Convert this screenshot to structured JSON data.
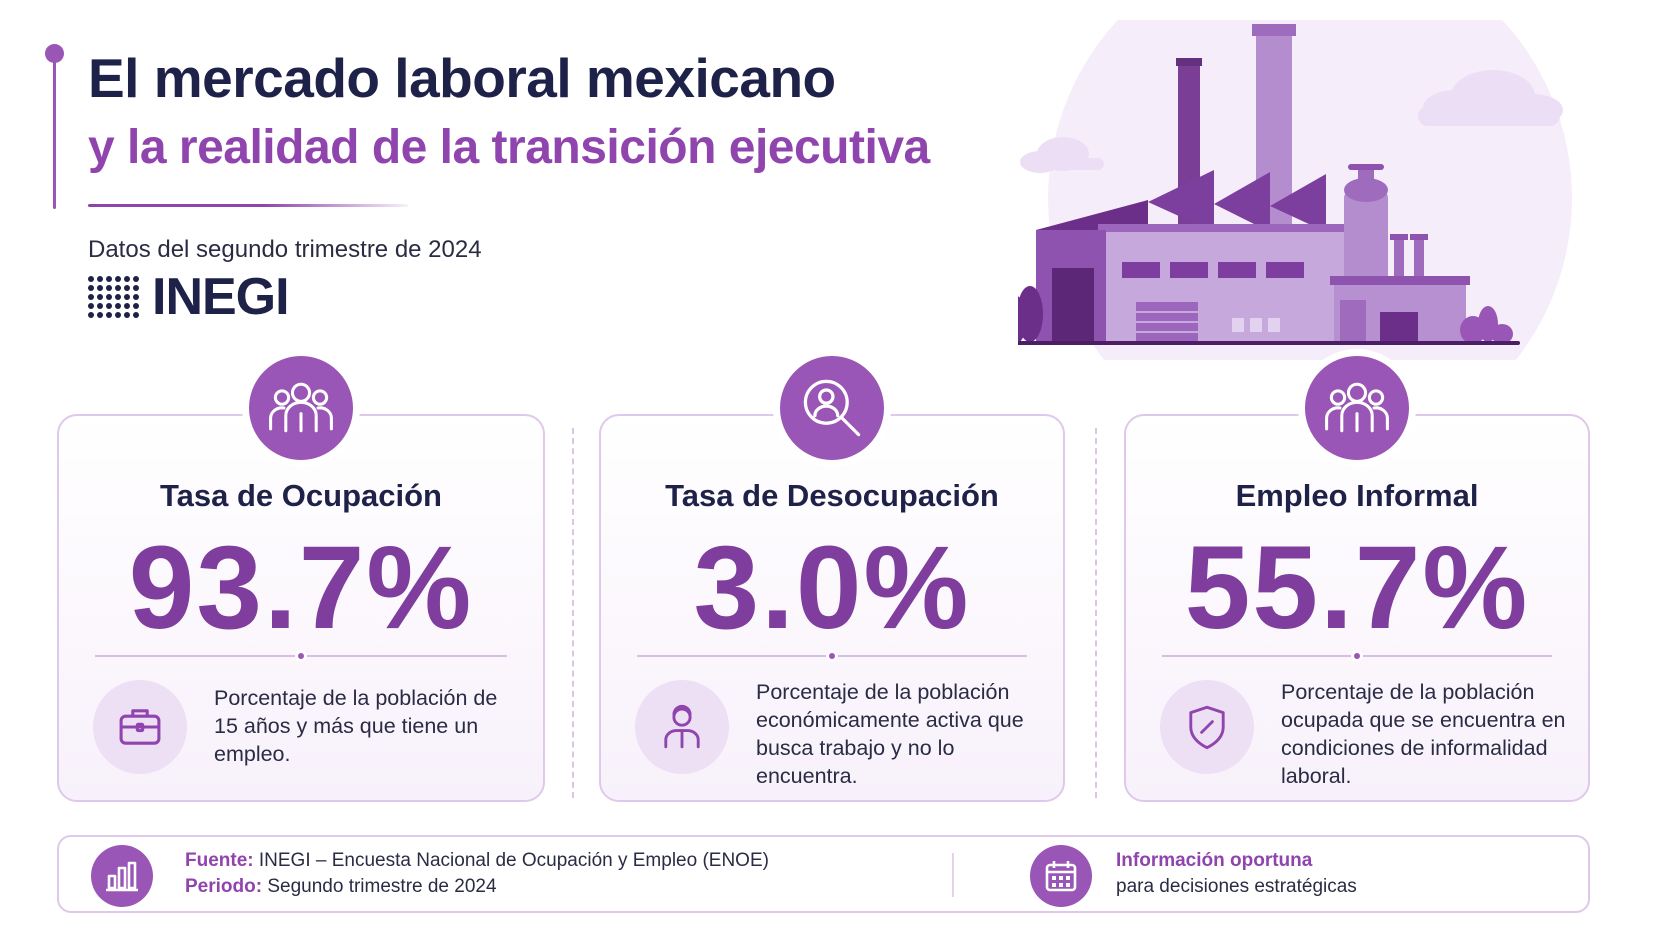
{
  "header": {
    "title_line1": "El mercado laboral mexicano",
    "title_line2": "y la realidad de la transición ejecutiva",
    "subtitle": "Datos del segundo trimestre de 2024",
    "logo_text": "INEGI"
  },
  "colors": {
    "accent": "#9a56b6",
    "value": "#7f3d9d",
    "title_dark": "#1e2148",
    "title_purple": "#8f45ad"
  },
  "cards": [
    {
      "title": "Tasa de Ocupación",
      "value": "93.7%",
      "description": "Porcentaje de la población de 15 años y más que tiene un empleo.",
      "badge_icon": "people-group-icon",
      "icon": "briefcase-icon"
    },
    {
      "title": "Tasa de Desocupación",
      "value": "3.0%",
      "description": "Porcentaje de la población económicamente activa que busca trabajo y no lo encuentra.",
      "badge_icon": "magnifier-person-icon",
      "icon": "person-icon"
    },
    {
      "title": "Empleo Informal",
      "value": "55.7%",
      "description": "Porcentaje de la población ocupada que se encuentra en condiciones de informalidad laboral.",
      "badge_icon": "people-group-icon",
      "icon": "shield-icon"
    }
  ],
  "footer": {
    "source_label": "Fuente:",
    "source_text": " INEGI – Encuesta Nacional de Ocupación y Empleo (ENOE)",
    "period_label": "Periodo:",
    "period_text": " Segundo trimestre de 2024",
    "info_title": "Información oportuna",
    "info_text": "para decisiones estratégicas",
    "left_icon": "bar-chart-icon",
    "right_icon": "calendar-icon"
  }
}
